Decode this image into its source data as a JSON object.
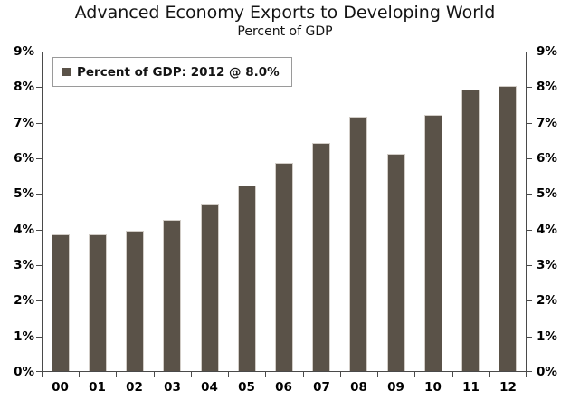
{
  "chart_data": {
    "type": "bar",
    "title": "Advanced Economy Exports to Developing World",
    "subtitle": "Percent of GDP",
    "categories": [
      "00",
      "01",
      "02",
      "03",
      "04",
      "05",
      "06",
      "07",
      "08",
      "09",
      "10",
      "11",
      "12"
    ],
    "values": [
      3.85,
      3.85,
      3.95,
      4.25,
      4.7,
      5.2,
      5.85,
      6.4,
      7.15,
      6.1,
      7.2,
      7.9,
      8.0
    ],
    "unit": "%",
    "xlabel": "",
    "ylabel": "",
    "ylim": [
      0,
      9
    ],
    "ytick_step": 1,
    "ytick_format": "{v}%",
    "dual_y_axis": true,
    "grid": false,
    "legend": "Percent of GDP: 2012 @ 8.0%",
    "legend_position": "top-left"
  },
  "colors": {
    "bar_fill": "#5a5248",
    "bar_edge": "#d2cdc7",
    "axis": "#4a4a4a",
    "text": "#000000",
    "legend_border": "#9a9a9a",
    "background": "#ffffff"
  }
}
